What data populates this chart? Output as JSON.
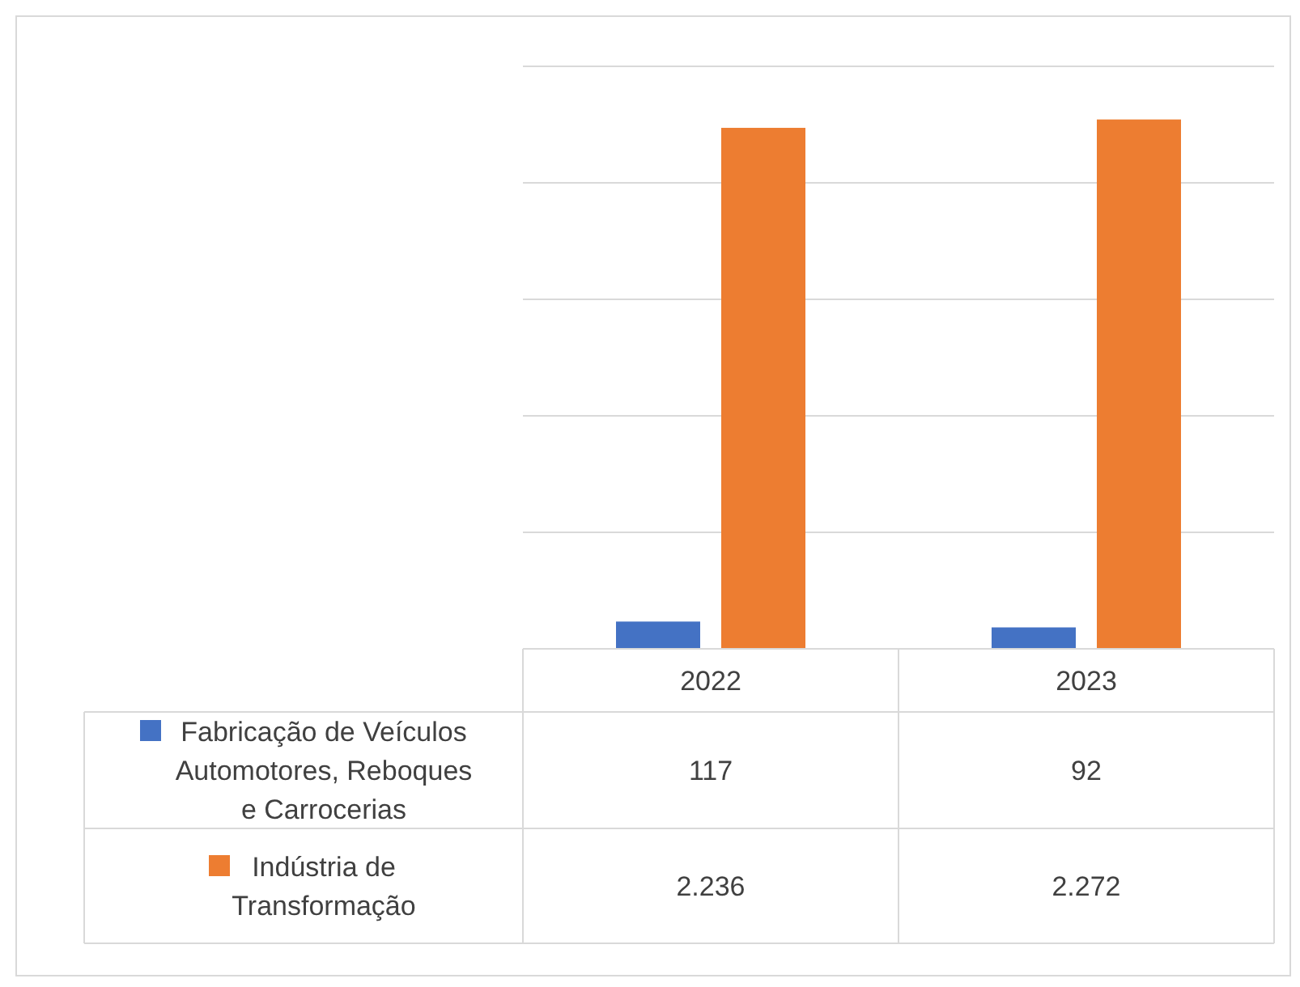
{
  "chart_data": {
    "type": "bar",
    "categories": [
      "2022",
      "2023"
    ],
    "series": [
      {
        "name": "Fabricação de Veículos Automotores, Reboques e Carrocerias",
        "color": "#4472c4",
        "values": [
          117,
          92
        ],
        "value_labels": [
          "117",
          "92"
        ]
      },
      {
        "name": "Indústria de Transformação",
        "color": "#ed7d31",
        "values": [
          2236,
          2272
        ],
        "value_labels": [
          "2.236",
          "2.272"
        ]
      }
    ],
    "ylim": [
      0,
      2500
    ],
    "yticks": [
      {
        "value": 0,
        "label": null
      },
      {
        "value": 500,
        "label": null
      },
      {
        "value": 1000,
        "label": null
      },
      {
        "value": 1500,
        "label": null
      },
      {
        "value": 2000,
        "label": null
      },
      {
        "value": 2500,
        "label": null
      }
    ],
    "grid": "y",
    "tick_labels": "x",
    "legend": "bottom",
    "data_labels": true
  }
}
